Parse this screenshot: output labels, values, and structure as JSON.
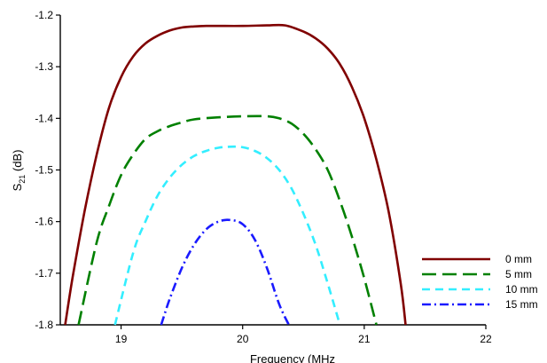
{
  "chart_data": {
    "type": "line",
    "title": "",
    "xlabel": "Frequency (MHz",
    "ylabel": {
      "main": "S",
      "sub": "21",
      "unit": " (dB)"
    },
    "xlim": [
      18.5,
      22
    ],
    "ylim": [
      -1.8,
      -1.2
    ],
    "xticks": [
      19,
      20,
      21,
      22
    ],
    "xtick_labels": [
      "19",
      "20",
      "21",
      "22"
    ],
    "yticks": [
      -1.8,
      -1.7,
      -1.6,
      -1.5,
      -1.4,
      -1.3,
      -1.2
    ],
    "ytick_labels": [
      "-1.8",
      "-1.7",
      "-1.6",
      "-1.5",
      "-1.4",
      "-1.3",
      "-1.2"
    ],
    "grid": false,
    "legend_position": "bottom-right",
    "series": [
      {
        "name": "0 mm",
        "color": "#800000",
        "dash": "solid",
        "x": [
          18.54,
          18.6,
          18.7,
          18.8,
          18.9,
          19.0,
          19.1,
          19.2,
          19.3,
          19.4,
          19.5,
          19.6,
          19.7,
          19.8,
          20.0,
          20.2,
          20.35,
          20.5,
          20.6,
          20.7,
          20.8,
          20.9,
          21.0,
          21.1,
          21.2,
          21.3,
          21.34
        ],
        "y": [
          -1.8,
          -1.71,
          -1.58,
          -1.47,
          -1.38,
          -1.32,
          -1.28,
          -1.255,
          -1.24,
          -1.23,
          -1.224,
          -1.222,
          -1.221,
          -1.221,
          -1.221,
          -1.22,
          -1.22,
          -1.232,
          -1.245,
          -1.265,
          -1.295,
          -1.34,
          -1.4,
          -1.48,
          -1.58,
          -1.72,
          -1.8
        ]
      },
      {
        "name": "5 mm",
        "color": "#008000",
        "dash": "long-dash",
        "x": [
          18.65,
          18.8,
          18.9,
          19.0,
          19.1,
          19.2,
          19.3,
          19.4,
          19.5,
          19.6,
          19.8,
          20.0,
          20.2,
          20.3,
          20.4,
          20.5,
          20.6,
          20.7,
          20.8,
          20.9,
          21.0,
          21.1
        ],
        "y": [
          -1.8,
          -1.64,
          -1.57,
          -1.51,
          -1.47,
          -1.44,
          -1.425,
          -1.415,
          -1.408,
          -1.402,
          -1.398,
          -1.396,
          -1.396,
          -1.4,
          -1.41,
          -1.43,
          -1.46,
          -1.5,
          -1.56,
          -1.63,
          -1.71,
          -1.8
        ]
      },
      {
        "name": "10 mm",
        "color": "#33eeff",
        "dash": "dash",
        "x": [
          18.95,
          19.1,
          19.2,
          19.3,
          19.4,
          19.5,
          19.6,
          19.7,
          19.8,
          19.9,
          20.0,
          20.1,
          20.2,
          20.3,
          20.4,
          20.5,
          20.6,
          20.7,
          20.8
        ],
        "y": [
          -1.8,
          -1.66,
          -1.6,
          -1.55,
          -1.515,
          -1.49,
          -1.473,
          -1.463,
          -1.457,
          -1.455,
          -1.456,
          -1.463,
          -1.477,
          -1.5,
          -1.535,
          -1.585,
          -1.645,
          -1.72,
          -1.8
        ]
      },
      {
        "name": "15 mm",
        "color": "#1a1aff",
        "dash": "dash-dot",
        "x": [
          19.33,
          19.4,
          19.5,
          19.6,
          19.7,
          19.8,
          19.9,
          20.0,
          20.1,
          20.2,
          20.3,
          20.38
        ],
        "y": [
          -1.8,
          -1.75,
          -1.69,
          -1.645,
          -1.615,
          -1.6,
          -1.597,
          -1.605,
          -1.635,
          -1.69,
          -1.76,
          -1.8
        ]
      }
    ]
  }
}
